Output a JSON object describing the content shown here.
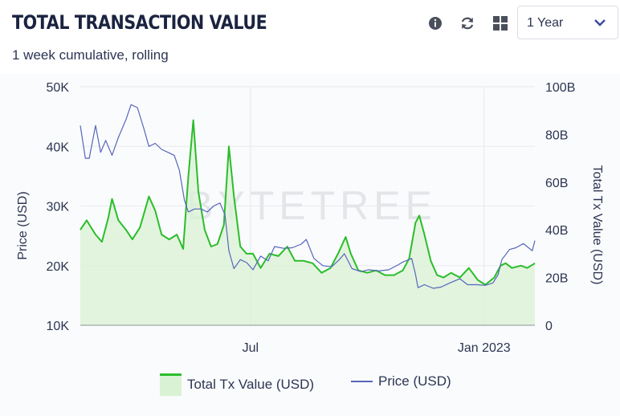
{
  "header": {
    "title": "TOTAL TRANSACTION VALUE",
    "subtitle": "1 week cumulative, rolling",
    "period_select": {
      "value": "1 Year"
    },
    "icons": [
      "info-icon",
      "refresh-icon",
      "grid-icon",
      "chevron-down-icon"
    ]
  },
  "watermark": "BYTETREE",
  "colors": {
    "tx_line": "#2bbd2b",
    "tx_fill": "#d9f2d4",
    "price_line": "#5566bb",
    "accent": "#3b4a9c"
  },
  "chart_data": {
    "type": "area",
    "x_ticks": [
      "Jul",
      "Jan 2023"
    ],
    "left_axis": {
      "label": "Price (USD)",
      "ticks": [
        "10K",
        "20K",
        "30K",
        "40K",
        "50K"
      ],
      "range": [
        10000,
        50000
      ]
    },
    "right_axis": {
      "label": "Total Tx Value (USD)",
      "ticks": [
        "0",
        "20B",
        "40B",
        "60B",
        "80B",
        "100B"
      ],
      "range": [
        0,
        100000000000
      ]
    },
    "x_range": [
      "2022-02-17",
      "2023-02-10"
    ],
    "grid": true,
    "legend_position": "bottom",
    "series": [
      {
        "name": "Total Tx Value (USD)",
        "axis": "right",
        "style": "area",
        "unit": "billions USD",
        "points": [
          [
            "2022-02-17",
            40
          ],
          [
            "2022-02-22",
            44
          ],
          [
            "2022-03-01",
            38
          ],
          [
            "2022-03-06",
            35
          ],
          [
            "2022-03-11",
            45
          ],
          [
            "2022-03-14",
            53
          ],
          [
            "2022-03-19",
            44
          ],
          [
            "2022-03-25",
            40
          ],
          [
            "2022-03-30",
            36
          ],
          [
            "2022-04-05",
            41
          ],
          [
            "2022-04-12",
            54
          ],
          [
            "2022-04-17",
            48
          ],
          [
            "2022-04-22",
            38
          ],
          [
            "2022-04-28",
            36
          ],
          [
            "2022-05-04",
            38
          ],
          [
            "2022-05-09",
            32
          ],
          [
            "2022-05-13",
            62
          ],
          [
            "2022-05-17",
            86
          ],
          [
            "2022-05-21",
            56
          ],
          [
            "2022-05-26",
            40
          ],
          [
            "2022-05-31",
            33
          ],
          [
            "2022-06-05",
            34
          ],
          [
            "2022-06-10",
            42
          ],
          [
            "2022-06-14",
            75
          ],
          [
            "2022-06-18",
            54
          ],
          [
            "2022-06-23",
            33
          ],
          [
            "2022-06-28",
            30
          ],
          [
            "2022-07-03",
            30
          ],
          [
            "2022-07-09",
            24
          ],
          [
            "2022-07-16",
            30
          ],
          [
            "2022-07-23",
            29
          ],
          [
            "2022-07-30",
            33
          ],
          [
            "2022-08-05",
            27
          ],
          [
            "2022-08-12",
            27
          ],
          [
            "2022-08-19",
            26
          ],
          [
            "2022-08-26",
            22
          ],
          [
            "2022-09-02",
            24
          ],
          [
            "2022-09-08",
            30
          ],
          [
            "2022-09-14",
            37
          ],
          [
            "2022-09-18",
            30
          ],
          [
            "2022-09-24",
            23
          ],
          [
            "2022-10-01",
            22
          ],
          [
            "2022-10-08",
            23
          ],
          [
            "2022-10-15",
            21
          ],
          [
            "2022-10-22",
            21
          ],
          [
            "2022-10-29",
            23
          ],
          [
            "2022-11-03",
            28
          ],
          [
            "2022-11-08",
            43
          ],
          [
            "2022-11-11",
            46
          ],
          [
            "2022-11-15",
            38
          ],
          [
            "2022-11-20",
            27
          ],
          [
            "2022-11-25",
            21
          ],
          [
            "2022-11-30",
            20
          ],
          [
            "2022-12-06",
            22
          ],
          [
            "2022-12-13",
            20
          ],
          [
            "2022-12-20",
            24
          ],
          [
            "2022-12-27",
            19
          ],
          [
            "2023-01-02",
            17
          ],
          [
            "2023-01-09",
            20
          ],
          [
            "2023-01-14",
            25
          ],
          [
            "2023-01-18",
            26
          ],
          [
            "2023-01-23",
            24
          ],
          [
            "2023-01-30",
            25
          ],
          [
            "2023-02-04",
            24
          ],
          [
            "2023-02-10",
            26
          ]
        ]
      },
      {
        "name": "Price (USD)",
        "axis": "left",
        "style": "line",
        "unit": "USD",
        "points": [
          [
            "2022-02-17",
            43500
          ],
          [
            "2022-02-21",
            38000
          ],
          [
            "2022-02-24",
            38000
          ],
          [
            "2022-03-01",
            43500
          ],
          [
            "2022-03-05",
            39000
          ],
          [
            "2022-03-09",
            41000
          ],
          [
            "2022-03-14",
            38500
          ],
          [
            "2022-03-19",
            41500
          ],
          [
            "2022-03-25",
            44500
          ],
          [
            "2022-03-29",
            47000
          ],
          [
            "2022-04-03",
            46500
          ],
          [
            "2022-04-08",
            43000
          ],
          [
            "2022-04-12",
            40000
          ],
          [
            "2022-04-17",
            40500
          ],
          [
            "2022-04-22",
            39500
          ],
          [
            "2022-04-27",
            39000
          ],
          [
            "2022-05-02",
            38500
          ],
          [
            "2022-05-06",
            36000
          ],
          [
            "2022-05-10",
            31000
          ],
          [
            "2022-05-13",
            29000
          ],
          [
            "2022-05-18",
            29500
          ],
          [
            "2022-05-23",
            29500
          ],
          [
            "2022-05-28",
            29000
          ],
          [
            "2022-06-02",
            30000
          ],
          [
            "2022-06-07",
            30500
          ],
          [
            "2022-06-11",
            28500
          ],
          [
            "2022-06-14",
            22500
          ],
          [
            "2022-06-18",
            19500
          ],
          [
            "2022-06-23",
            21000
          ],
          [
            "2022-06-28",
            20500
          ],
          [
            "2022-07-03",
            19300
          ],
          [
            "2022-07-09",
            21600
          ],
          [
            "2022-07-15",
            20800
          ],
          [
            "2022-07-20",
            23200
          ],
          [
            "2022-07-27",
            22900
          ],
          [
            "2022-08-03",
            23000
          ],
          [
            "2022-08-10",
            23600
          ],
          [
            "2022-08-14",
            24400
          ],
          [
            "2022-08-20",
            21200
          ],
          [
            "2022-08-27",
            20000
          ],
          [
            "2022-09-03",
            19800
          ],
          [
            "2022-09-09",
            21000
          ],
          [
            "2022-09-13",
            22000
          ],
          [
            "2022-09-19",
            19500
          ],
          [
            "2022-09-26",
            19000
          ],
          [
            "2022-10-02",
            19300
          ],
          [
            "2022-10-10",
            19100
          ],
          [
            "2022-10-18",
            19300
          ],
          [
            "2022-10-25",
            20100
          ],
          [
            "2022-10-29",
            20600
          ],
          [
            "2022-11-05",
            21200
          ],
          [
            "2022-11-08",
            18500
          ],
          [
            "2022-11-10",
            16300
          ],
          [
            "2022-11-15",
            16800
          ],
          [
            "2022-11-22",
            16200
          ],
          [
            "2022-11-28",
            16400
          ],
          [
            "2022-12-05",
            17100
          ],
          [
            "2022-12-13",
            17800
          ],
          [
            "2022-12-19",
            16800
          ],
          [
            "2022-12-26",
            16800
          ],
          [
            "2023-01-02",
            16700
          ],
          [
            "2023-01-08",
            17100
          ],
          [
            "2023-01-12",
            18500
          ],
          [
            "2023-01-15",
            21000
          ],
          [
            "2023-01-21",
            22700
          ],
          [
            "2023-01-26",
            23000
          ],
          [
            "2023-02-01",
            23700
          ],
          [
            "2023-02-05",
            23000
          ],
          [
            "2023-02-08",
            22500
          ],
          [
            "2023-02-10",
            24200
          ]
        ]
      }
    ]
  }
}
